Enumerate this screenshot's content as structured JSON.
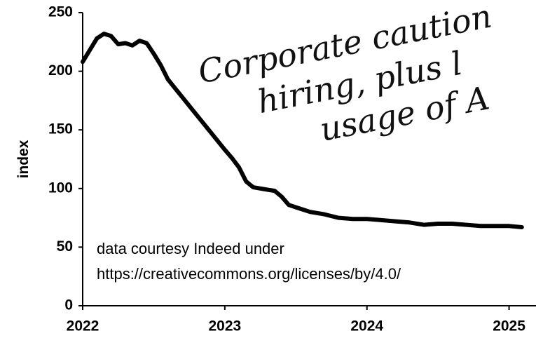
{
  "chart_data": {
    "type": "line",
    "ylabel": "index",
    "annotations": [
      "data courtesy Indeed under",
      "https://creativecommons.org/licenses/by/4.0/"
    ],
    "handwritten": [
      "Corporate caution",
      "hiring, plus l",
      "usage of A"
    ],
    "xlim": [
      2022,
      2025.15
    ],
    "xticks": [
      2022,
      2023,
      2024,
      2025
    ],
    "ylim": [
      0,
      250
    ],
    "yticks": [
      0,
      50,
      100,
      150,
      200,
      250
    ],
    "grid": false,
    "series": [
      {
        "color": "#000000",
        "x": [
          2022.0,
          2022.05,
          2022.1,
          2022.15,
          2022.2,
          2022.25,
          2022.3,
          2022.35,
          2022.4,
          2022.45,
          2022.5,
          2022.55,
          2022.6,
          2022.7,
          2022.8,
          2022.9,
          2023.0,
          2023.05,
          2023.1,
          2023.15,
          2023.2,
          2023.3,
          2023.35,
          2023.4,
          2023.45,
          2023.5,
          2023.55,
          2023.6,
          2023.7,
          2023.8,
          2023.9,
          2024.0,
          2024.1,
          2024.2,
          2024.3,
          2024.4,
          2024.5,
          2024.6,
          2024.7,
          2024.8,
          2024.9,
          2025.0,
          2025.09
        ],
        "values": [
          208,
          218,
          228,
          232,
          230,
          223,
          224,
          222,
          226,
          224,
          215,
          205,
          193,
          178,
          163,
          148,
          133,
          126,
          118,
          106,
          101,
          99,
          98,
          93,
          86,
          84,
          82,
          80,
          78,
          75,
          74,
          74,
          73,
          72,
          71,
          69,
          70,
          70,
          69,
          68,
          68,
          68,
          67
        ]
      }
    ]
  }
}
